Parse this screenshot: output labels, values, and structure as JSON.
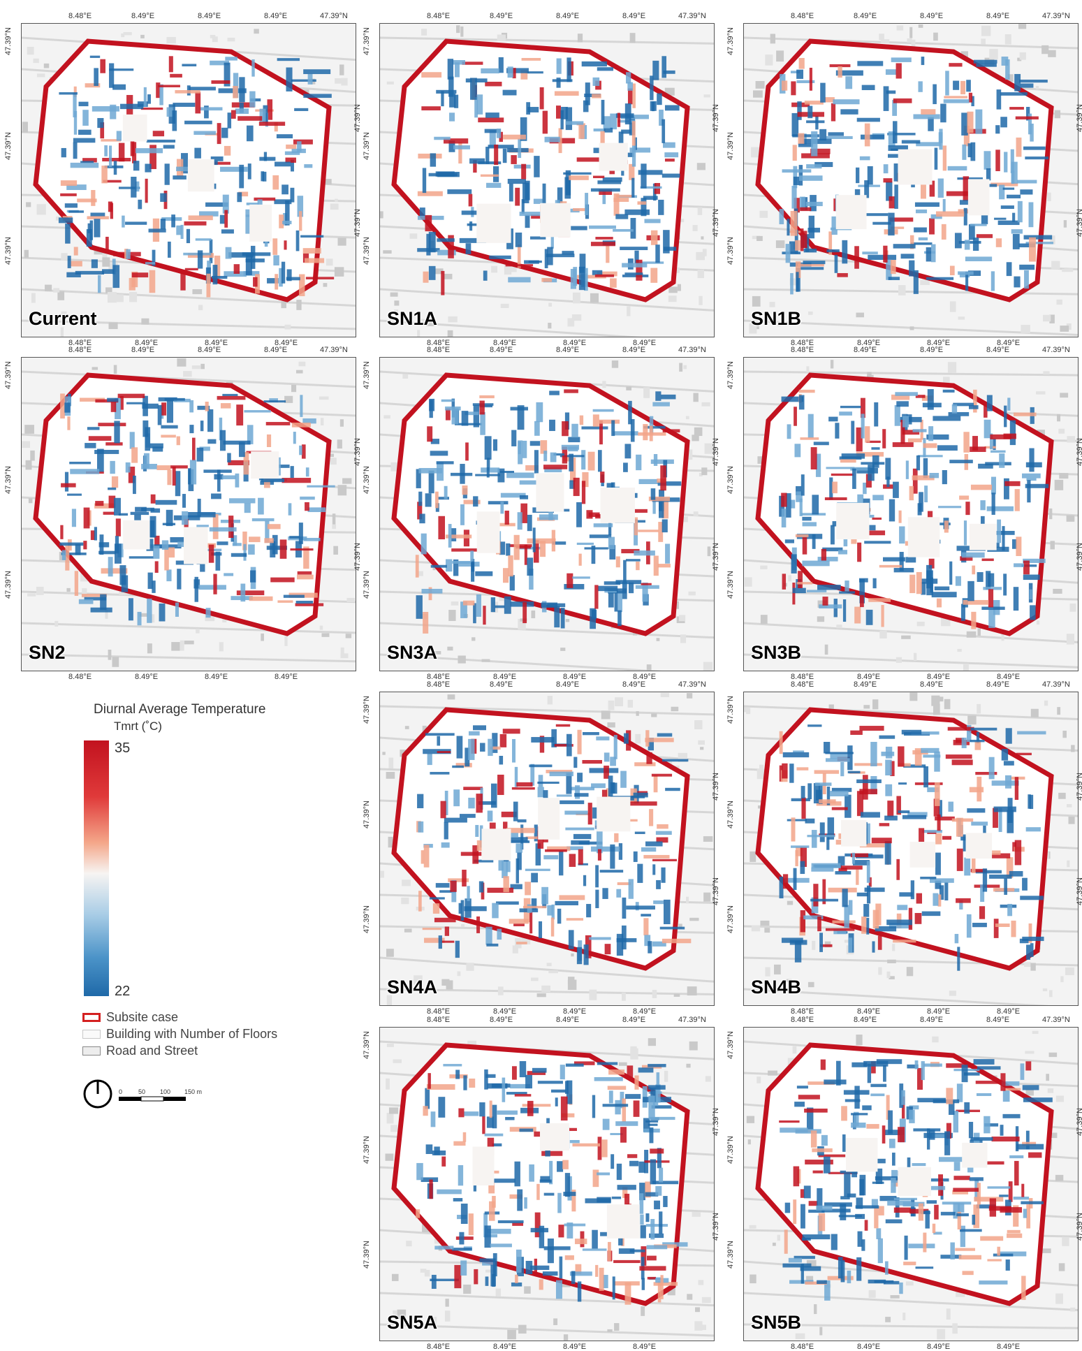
{
  "panels": [
    {
      "name": "Current",
      "top_ticks": [
        "8.48°E",
        "8.49°E",
        "8.49°E",
        "8.49°E",
        "47.39°N"
      ],
      "bottom_ticks": [
        "8.48°E",
        "8.49°E",
        "8.49°E",
        "8.49°E"
      ],
      "left_ticks": [
        "47.39°N",
        "47.39°N",
        "47.39°N"
      ],
      "right_ticks": [
        "47.39°N",
        "47.39°N"
      ]
    },
    {
      "name": "SN1A",
      "top_ticks": [
        "8.48°E",
        "8.49°E",
        "8.49°E",
        "8.49°E",
        "47.39°N"
      ],
      "bottom_ticks": [
        "8.48°E",
        "8.49°E",
        "8.49°E",
        "8.49°E"
      ],
      "left_ticks": [
        "47.39°N",
        "47.39°N",
        "47.39°N"
      ],
      "right_ticks": [
        "47.39°N",
        "47.39°N"
      ]
    },
    {
      "name": "SN1B",
      "top_ticks": [
        "8.48°E",
        "8.49°E",
        "8.49°E",
        "8.49°E",
        "47.39°N"
      ],
      "bottom_ticks": [
        "8.48°E",
        "8.49°E",
        "8.49°E",
        "8.49°E"
      ],
      "left_ticks": [
        "47.39°N",
        "47.39°N",
        "47.39°N"
      ],
      "right_ticks": [
        "47.39°N",
        "47.39°N"
      ]
    },
    {
      "name": "SN2",
      "top_ticks": [
        "8.48°E",
        "8.49°E",
        "8.49°E",
        "8.49°E",
        "47.39°N"
      ],
      "bottom_ticks": [
        "8.48°E",
        "8.49°E",
        "8.49°E",
        "8.49°E"
      ],
      "left_ticks": [
        "47.39°N",
        "47.39°N",
        "47.39°N"
      ],
      "right_ticks": [
        "47.39°N",
        "47.39°N"
      ]
    },
    {
      "name": "SN3A",
      "top_ticks": [
        "8.48°E",
        "8.49°E",
        "8.49°E",
        "8.49°E",
        "47.39°N"
      ],
      "bottom_ticks": [
        "8.48°E",
        "8.49°E",
        "8.49°E",
        "8.49°E"
      ],
      "left_ticks": [
        "47.39°N",
        "47.39°N",
        "47.39°N"
      ],
      "right_ticks": [
        "47.39°N",
        "47.39°N"
      ]
    },
    {
      "name": "SN3B",
      "top_ticks": [
        "8.48°E",
        "8.49°E",
        "8.49°E",
        "8.49°E",
        "47.39°N"
      ],
      "bottom_ticks": [
        "8.48°E",
        "8.49°E",
        "8.49°E",
        "8.49°E"
      ],
      "left_ticks": [
        "47.39°N",
        "47.39°N",
        "47.39°N"
      ],
      "right_ticks": [
        "47.39°N",
        "47.39°N"
      ]
    },
    {
      "name": "SN4A",
      "top_ticks": [
        "8.48°E",
        "8.49°E",
        "8.49°E",
        "8.49°E",
        "47.39°N"
      ],
      "bottom_ticks": [
        "8.48°E",
        "8.49°E",
        "8.49°E",
        "8.49°E"
      ],
      "left_ticks": [
        "47.39°N",
        "47.39°N",
        "47.39°N"
      ],
      "right_ticks": [
        "47.39°N",
        "47.39°N"
      ]
    },
    {
      "name": "SN4B",
      "top_ticks": [
        "8.48°E",
        "8.49°E",
        "8.49°E",
        "8.49°E",
        "47.39°N"
      ],
      "bottom_ticks": [
        "8.48°E",
        "8.49°E",
        "8.49°E",
        "8.49°E"
      ],
      "left_ticks": [
        "47.39°N",
        "47.39°N",
        "47.39°N"
      ],
      "right_ticks": [
        "47.39°N",
        "47.39°N"
      ]
    },
    {
      "name": "SN5A",
      "top_ticks": [
        "8.48°E",
        "8.49°E",
        "8.49°E",
        "8.49°E",
        "47.39°N"
      ],
      "bottom_ticks": [
        "8.48°E",
        "8.49°E",
        "8.49°E",
        "8.49°E"
      ],
      "left_ticks": [
        "47.39°N",
        "47.39°N",
        "47.39°N"
      ],
      "right_ticks": [
        "47.39°N",
        "47.39°N"
      ]
    },
    {
      "name": "SN5B",
      "top_ticks": [
        "8.48°E",
        "8.49°E",
        "8.49°E",
        "8.49°E",
        "47.39°N"
      ],
      "bottom_ticks": [
        "8.48°E",
        "8.49°E",
        "8.49°E",
        "8.49°E"
      ],
      "left_ticks": [
        "47.39°N",
        "47.39°N",
        "47.39°N"
      ],
      "right_ticks": [
        "47.39°N",
        "47.39°N"
      ]
    }
  ],
  "legend": {
    "title": "Diurnal Average Temperature",
    "unit": "Tmrt (˚C)",
    "max": "35",
    "min": "22",
    "colors": {
      "hot": "#c2121f",
      "neutral": "#f7f4f2",
      "cool": "#1f69a8"
    },
    "items": [
      {
        "label": "Subsite case",
        "swatch": "red-outline"
      },
      {
        "label": "Building with Number of Floors",
        "swatch": "light-fill"
      },
      {
        "label": "Road and Street",
        "swatch": "grey-outline"
      }
    ],
    "scale_bar": {
      "ticks": [
        "0",
        "50",
        "100",
        "150 m"
      ]
    },
    "north_arrow": "north-arrow-icon"
  }
}
